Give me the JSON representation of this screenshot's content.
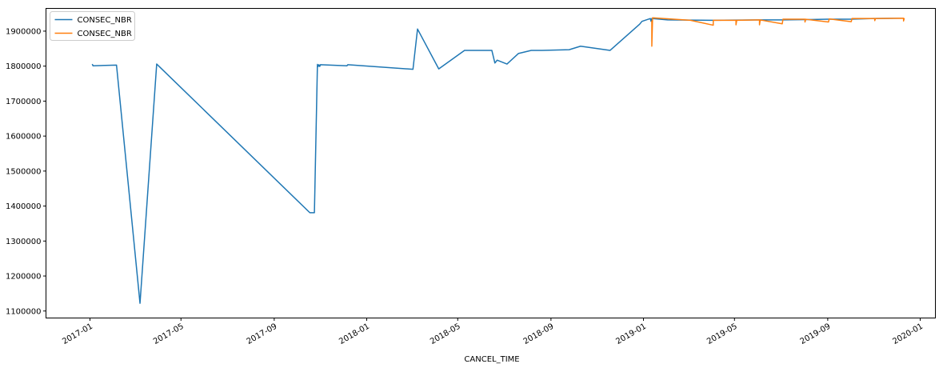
{
  "chart_data": {
    "type": "line",
    "title": "",
    "xlabel": "CANCEL_TIME",
    "ylabel": "",
    "x_type": "date",
    "xlim": [
      "2016-11-04",
      "2020-01-21"
    ],
    "ylim": [
      1080000,
      1965000
    ],
    "grid": false,
    "legend_position": "top-left",
    "x_ticks": [
      {
        "value": "2017-01-01",
        "label": "2017-01"
      },
      {
        "value": "2017-05-01",
        "label": "2017-05"
      },
      {
        "value": "2017-09-01",
        "label": "2017-09"
      },
      {
        "value": "2018-01-01",
        "label": "2018-01"
      },
      {
        "value": "2018-05-01",
        "label": "2018-05"
      },
      {
        "value": "2018-09-01",
        "label": "2018-09"
      },
      {
        "value": "2019-01-01",
        "label": "2019-01"
      },
      {
        "value": "2019-05-01",
        "label": "2019-05"
      },
      {
        "value": "2019-09-01",
        "label": "2019-09"
      },
      {
        "value": "2020-01-01",
        "label": "2020-01"
      }
    ],
    "y_ticks": [
      {
        "value": 1100000,
        "label": "1100000"
      },
      {
        "value": 1200000,
        "label": "1200000"
      },
      {
        "value": 1300000,
        "label": "1300000"
      },
      {
        "value": 1400000,
        "label": "1400000"
      },
      {
        "value": 1500000,
        "label": "1500000"
      },
      {
        "value": 1600000,
        "label": "1600000"
      },
      {
        "value": 1700000,
        "label": "1700000"
      },
      {
        "value": 1800000,
        "label": "1800000"
      },
      {
        "value": 1900000,
        "label": "1900000"
      }
    ],
    "series": [
      {
        "name": "CONSEC_NBR",
        "color": "#1f77b4",
        "points": [
          [
            "2017-01-04",
            1806000
          ],
          [
            "2017-01-05",
            1801000
          ],
          [
            "2017-02-05",
            1803000
          ],
          [
            "2017-03-08",
            1122000
          ],
          [
            "2017-03-30",
            1806000
          ],
          [
            "2017-10-18",
            1381000
          ],
          [
            "2017-10-24",
            1381000
          ],
          [
            "2017-10-28",
            1805000
          ],
          [
            "2017-10-29",
            1799000
          ],
          [
            "2017-10-30",
            1804000
          ],
          [
            "2017-10-31",
            1799000
          ],
          [
            "2017-11-01",
            1804000
          ],
          [
            "2017-12-06",
            1801000
          ],
          [
            "2017-12-07",
            1804000
          ],
          [
            "2018-03-03",
            1791000
          ],
          [
            "2018-03-09",
            1906000
          ],
          [
            "2018-04-06",
            1792000
          ],
          [
            "2018-05-10",
            1845000
          ],
          [
            "2018-06-15",
            1845000
          ],
          [
            "2018-06-19",
            1809000
          ],
          [
            "2018-06-22",
            1817000
          ],
          [
            "2018-07-05",
            1806000
          ],
          [
            "2018-07-20",
            1836000
          ],
          [
            "2018-08-06",
            1845000
          ],
          [
            "2018-08-20",
            1845000
          ],
          [
            "2018-09-25",
            1847000
          ],
          [
            "2018-10-10",
            1857000
          ],
          [
            "2018-11-18",
            1845000
          ],
          [
            "2018-12-27",
            1920000
          ],
          [
            "2018-12-30",
            1928000
          ],
          [
            "2019-01-10",
            1936000
          ],
          [
            "2019-01-11",
            1928000
          ],
          [
            "2019-01-12",
            1936000
          ],
          [
            "2019-02-02",
            1932000
          ],
          [
            "2019-04-01",
            1931000
          ],
          [
            "2019-06-01",
            1932000
          ],
          [
            "2019-07-03",
            1932000
          ],
          [
            "2019-09-01",
            1934000
          ],
          [
            "2019-10-01",
            1934000
          ],
          [
            "2019-11-01",
            1936000
          ],
          [
            "2019-12-10",
            1937000
          ]
        ]
      },
      {
        "name": "CONSEC_NBR",
        "color": "#ff7f0e",
        "points": [
          [
            "2019-01-12",
            1930000
          ],
          [
            "2019-01-12",
            1857000
          ],
          [
            "2019-01-13",
            1938000
          ],
          [
            "2019-03-04",
            1931000
          ],
          [
            "2019-04-03",
            1917000
          ],
          [
            "2019-04-03",
            1931000
          ],
          [
            "2019-05-03",
            1931000
          ],
          [
            "2019-05-03",
            1918000
          ],
          [
            "2019-05-04",
            1931000
          ],
          [
            "2019-06-03",
            1932000
          ],
          [
            "2019-06-03",
            1918000
          ],
          [
            "2019-06-04",
            1932000
          ],
          [
            "2019-07-03",
            1921000
          ],
          [
            "2019-07-04",
            1934000
          ],
          [
            "2019-08-02",
            1934000
          ],
          [
            "2019-08-02",
            1926000
          ],
          [
            "2019-08-03",
            1934000
          ],
          [
            "2019-09-02",
            1926000
          ],
          [
            "2019-09-03",
            1935000
          ],
          [
            "2019-10-02",
            1927000
          ],
          [
            "2019-10-03",
            1936000
          ],
          [
            "2019-11-02",
            1936000
          ],
          [
            "2019-11-02",
            1930000
          ],
          [
            "2019-11-03",
            1936000
          ],
          [
            "2019-12-10",
            1937000
          ],
          [
            "2019-12-10",
            1929000
          ],
          [
            "2019-12-11",
            1937000
          ]
        ]
      }
    ]
  }
}
